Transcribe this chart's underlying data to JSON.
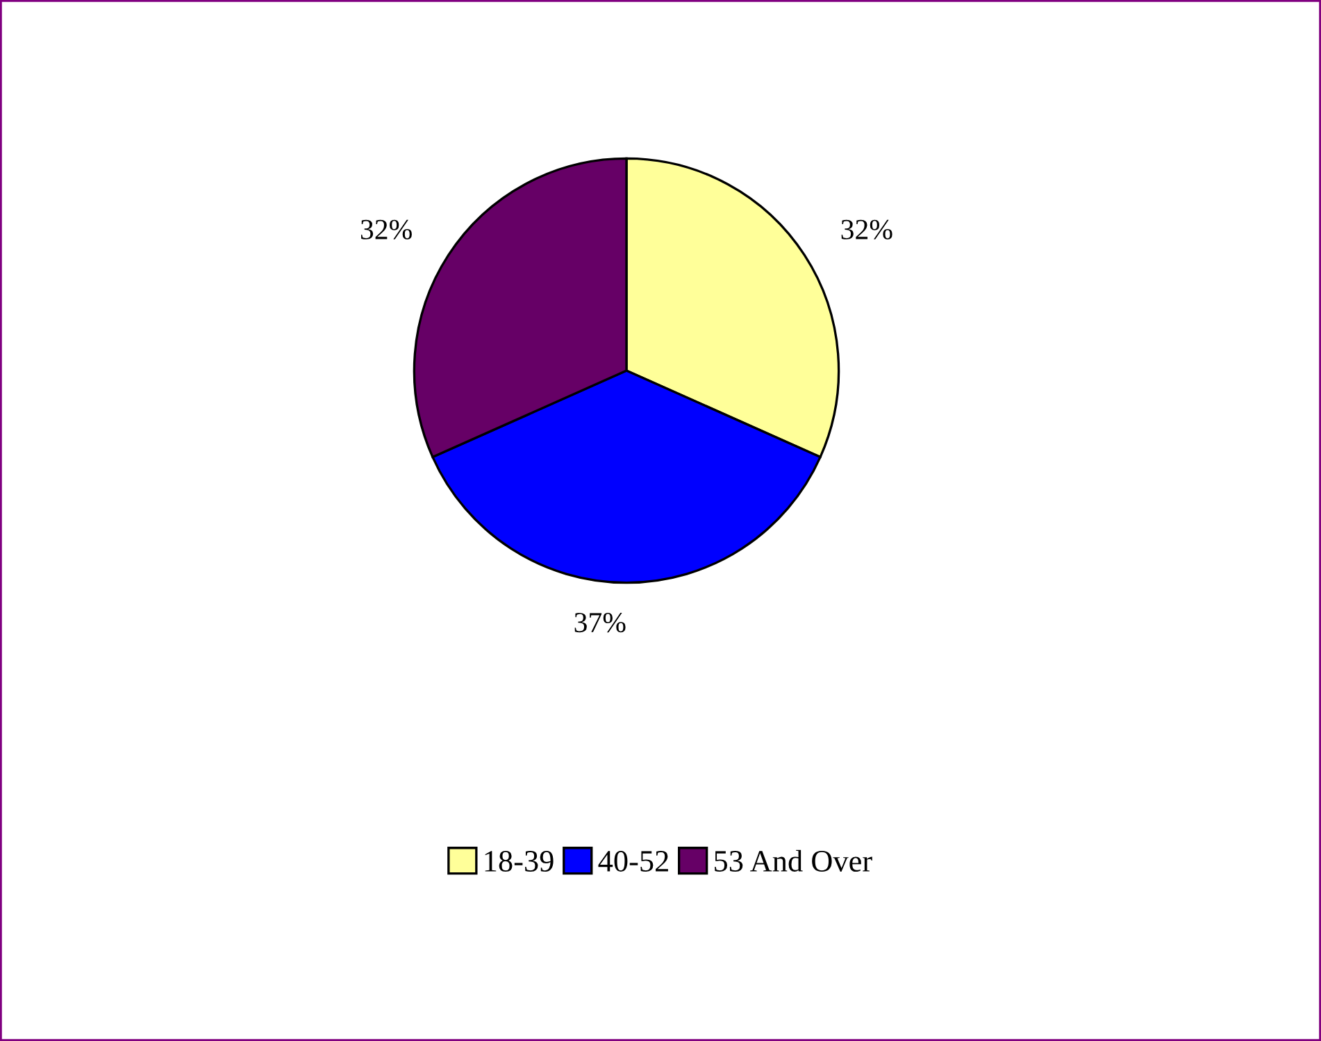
{
  "chart_data": {
    "type": "pie",
    "categories": [
      "18-39",
      "40-52",
      "53 And Over"
    ],
    "values": [
      32,
      37,
      32
    ],
    "colors": [
      "#ffff99",
      "#0000ff",
      "#660066"
    ],
    "value_labels": [
      "32%",
      "37%",
      "32%"
    ],
    "legend": "bottom"
  }
}
